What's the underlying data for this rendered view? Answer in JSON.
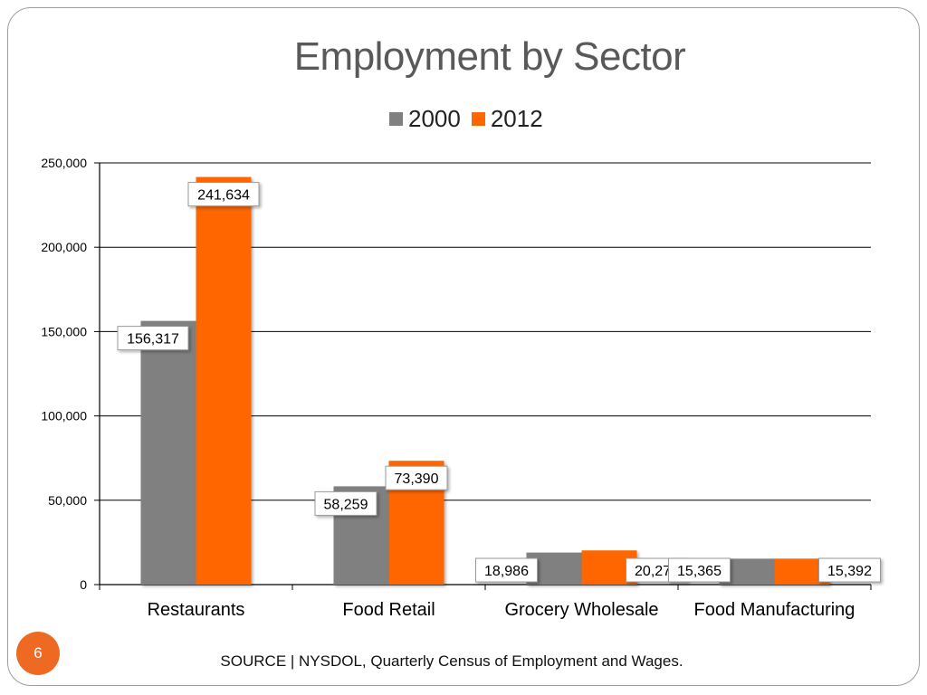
{
  "slide": {
    "title": "Employment by Sector",
    "source": "SOURCE | NYSDOL, Quarterly Census of Employment and Wages.",
    "page_number": "6"
  },
  "colors": {
    "series_2000": "#808080",
    "series_2012": "#ff6600",
    "badge": "#ee6a23",
    "title": "#595959"
  },
  "chart_data": {
    "type": "bar",
    "title": "Employment by Sector",
    "xlabel": "",
    "ylabel": "",
    "categories": [
      "Restaurants",
      "Food Retail",
      "Grocery Wholesale",
      "Food Manufacturing"
    ],
    "series": [
      {
        "name": "2000",
        "values": [
          156317,
          58259,
          18986,
          15365
        ],
        "labels": [
          "156,317",
          "58,259",
          "18,986",
          "15,365"
        ]
      },
      {
        "name": "2012",
        "values": [
          241634,
          73390,
          20273,
          15392
        ],
        "labels": [
          "241,634",
          "73,390",
          "20,273",
          "15,392"
        ]
      }
    ],
    "ylim": [
      0,
      250000
    ],
    "yticks": [
      0,
      50000,
      100000,
      150000,
      200000,
      250000
    ],
    "ytick_labels": [
      "0",
      "50,000",
      "100,000",
      "150,000",
      "200,000",
      "250,000"
    ],
    "grid": true,
    "legend_position": "top-center"
  }
}
